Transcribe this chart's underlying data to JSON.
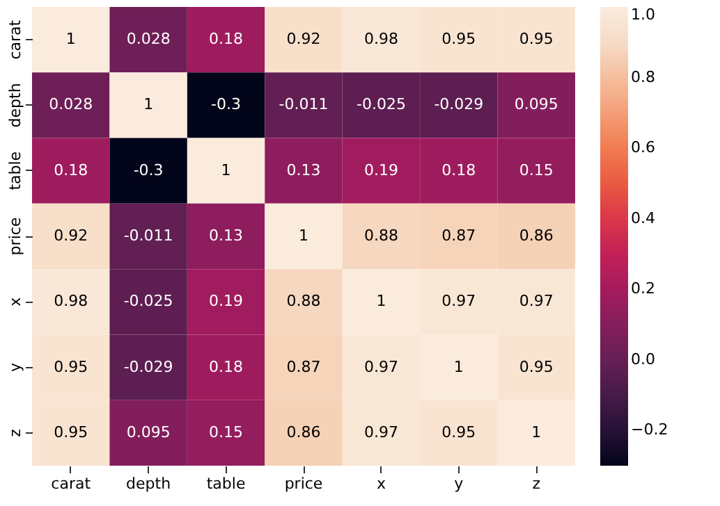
{
  "chart_data": {
    "type": "heatmap",
    "categories": [
      "carat",
      "depth",
      "table",
      "price",
      "x",
      "y",
      "z"
    ],
    "y_categories": [
      "carat",
      "depth",
      "table",
      "price",
      "x",
      "y",
      "z"
    ],
    "cells": [
      [
        1,
        0.028,
        0.18,
        0.92,
        0.98,
        0.95,
        0.95
      ],
      [
        0.028,
        1,
        -0.3,
        -0.011,
        -0.025,
        -0.029,
        0.095
      ],
      [
        0.18,
        -0.3,
        1,
        0.13,
        0.19,
        0.18,
        0.15
      ],
      [
        0.92,
        -0.011,
        0.13,
        1,
        0.88,
        0.87,
        0.86
      ],
      [
        0.98,
        -0.025,
        0.19,
        0.88,
        1,
        0.97,
        0.97
      ],
      [
        0.95,
        -0.029,
        0.18,
        0.87,
        0.97,
        1,
        0.95
      ],
      [
        0.95,
        0.095,
        0.15,
        0.86,
        0.97,
        0.95,
        1
      ]
    ],
    "data_labels": true,
    "clim": [
      -0.3,
      1.0
    ],
    "cticks": [
      {
        "value": -0.2,
        "label": "−0.2"
      },
      {
        "value": 0.0,
        "label": "0.0"
      },
      {
        "value": 0.2,
        "label": "0.2"
      },
      {
        "value": 0.4,
        "label": "0.4"
      },
      {
        "value": 0.6,
        "label": "0.6"
      },
      {
        "value": 0.8,
        "label": "0.8"
      },
      {
        "value": 1.0,
        "label": "1.0"
      }
    ]
  }
}
